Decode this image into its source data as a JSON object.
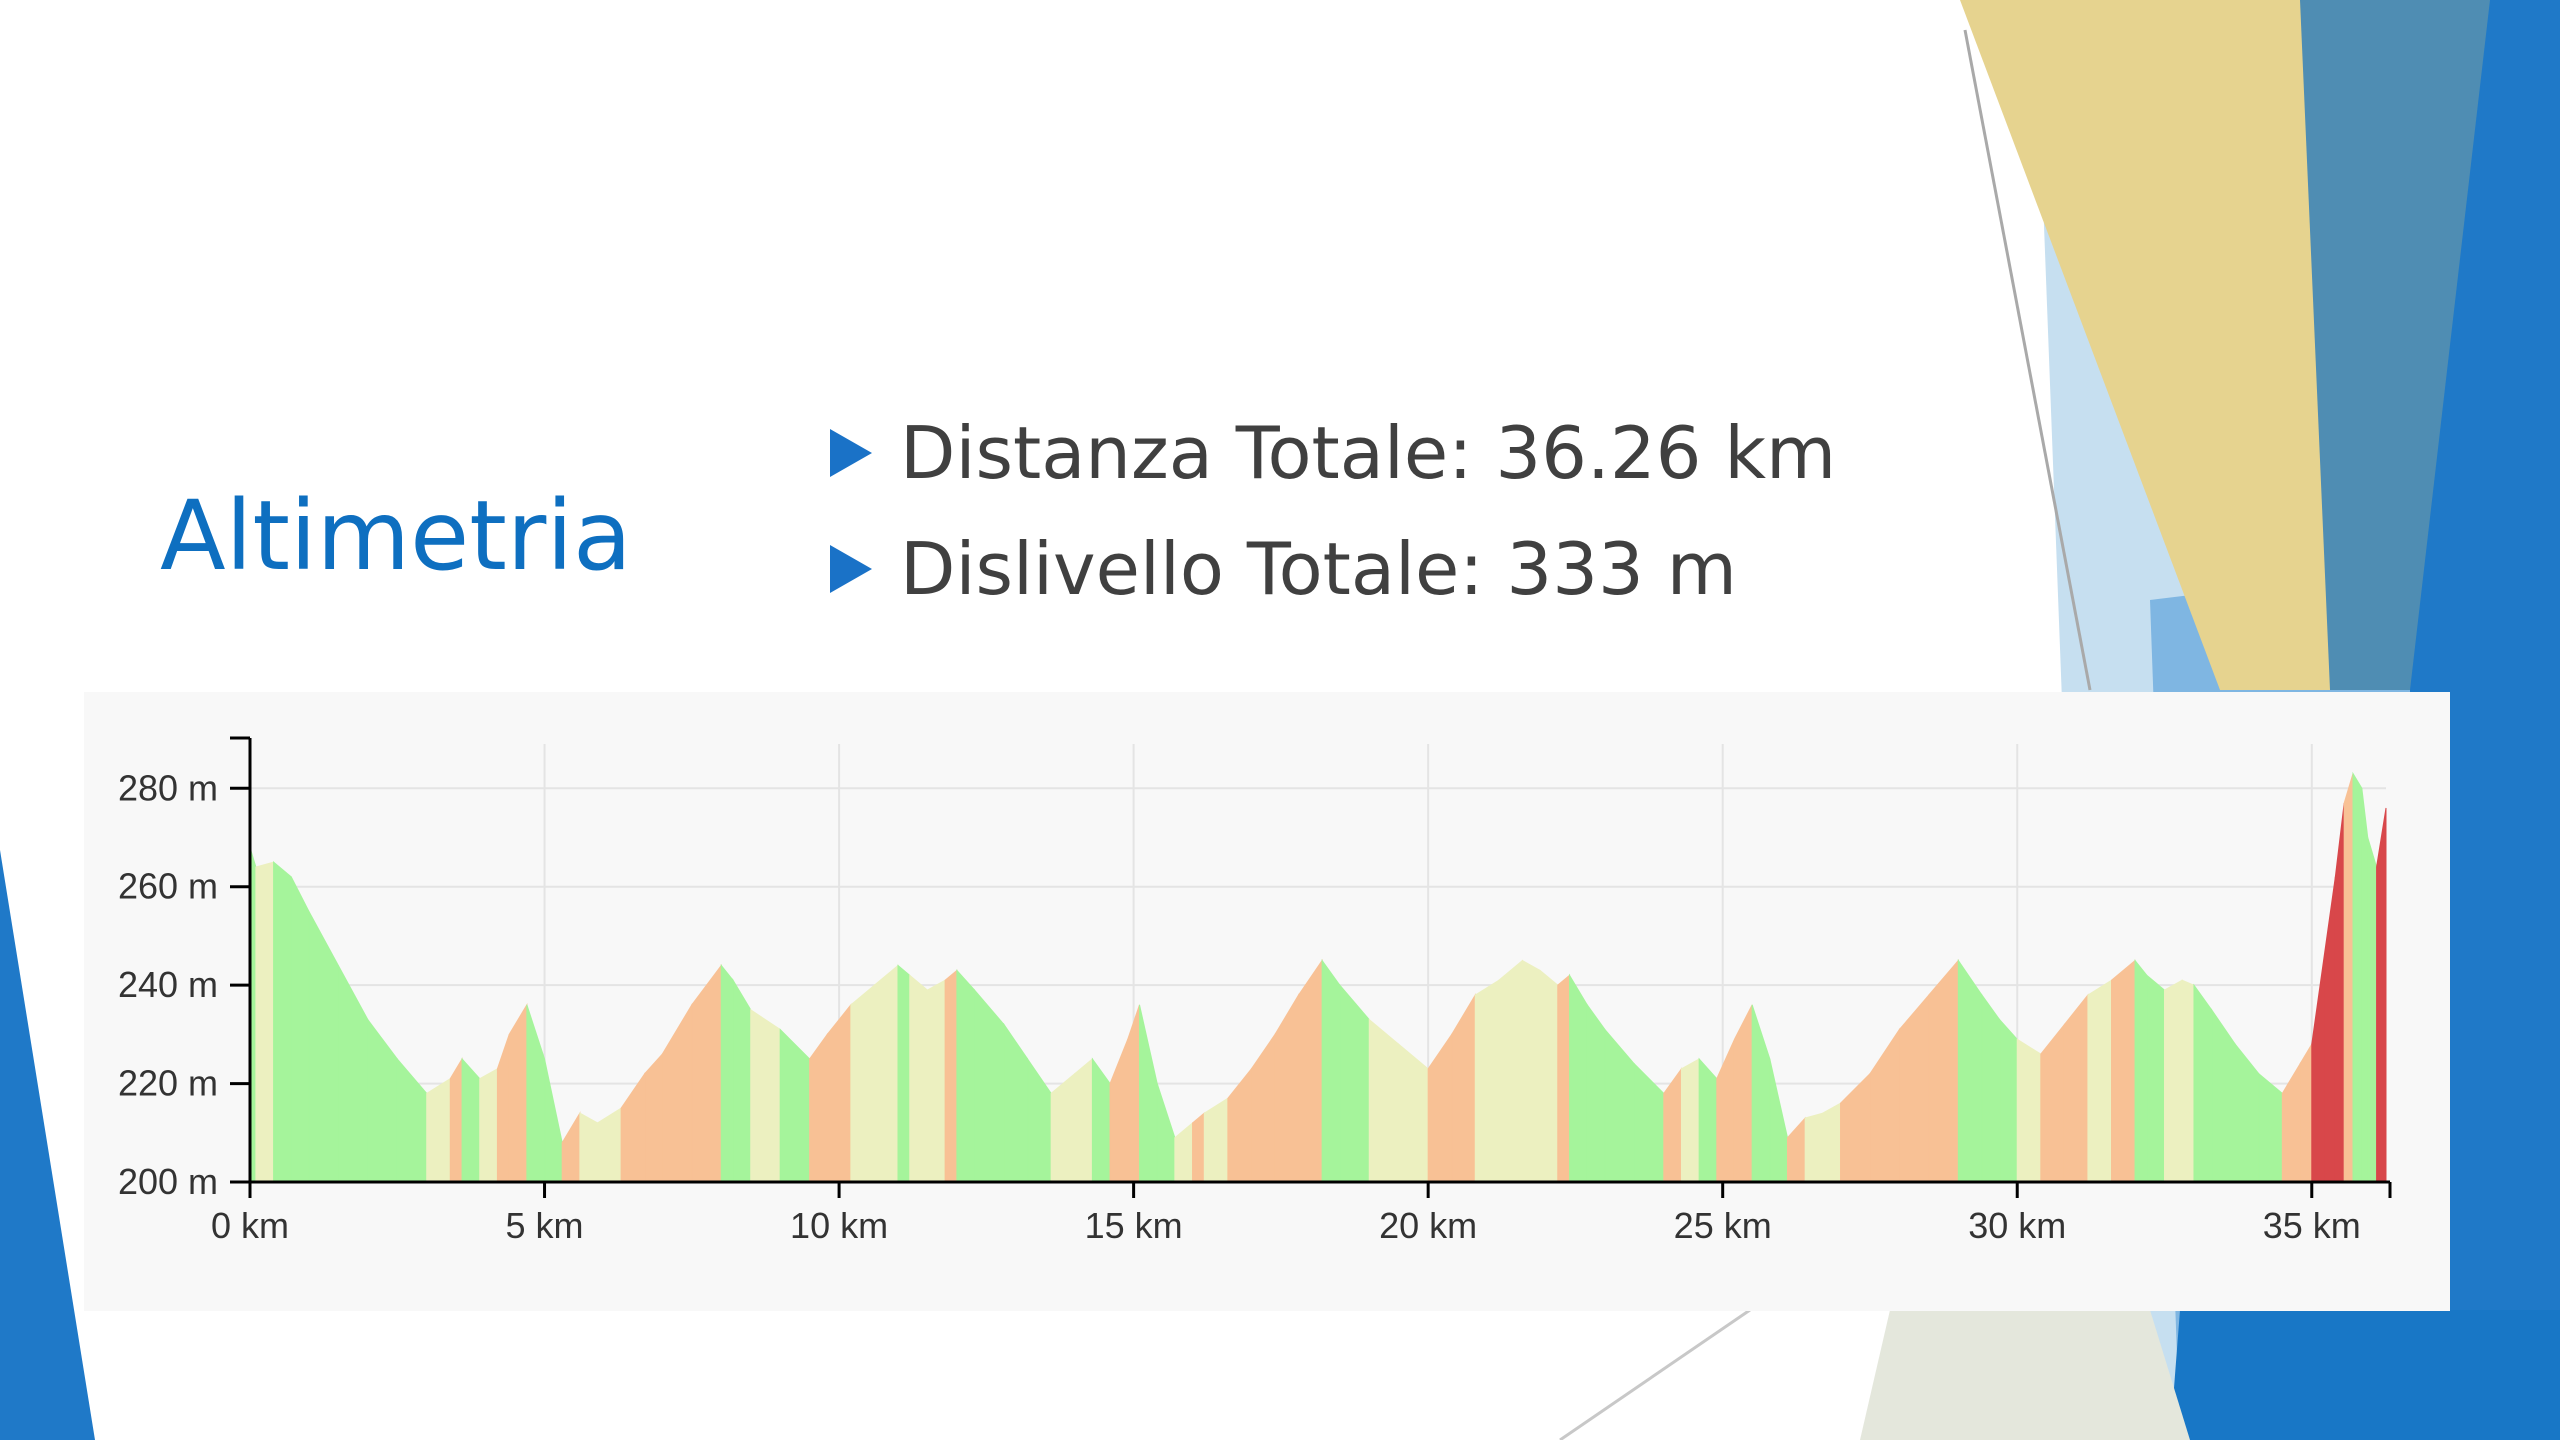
{
  "slide": {
    "title": "Altimetria",
    "bullets": [
      "Distanza Totale: 36.26 km",
      "Dislivello Totale: 333 m"
    ]
  },
  "colors": {
    "title": "#0e6fc0",
    "text": "#404040",
    "bullet_marker": "#1a72c7",
    "chart_background": "#f8f8f8",
    "grid": "#e4e4e4",
    "axis": "#000000",
    "slope_descent": "#a5f49b",
    "slope_flat": "#ecf0c0",
    "slope_gentle_climb": "#f8c195",
    "slope_steep_climb": "#d8474a"
  },
  "chart_data": {
    "type": "area",
    "title": "",
    "xlabel": "",
    "ylabel": "",
    "xlim": [
      0,
      36.26
    ],
    "ylim": [
      200,
      289
    ],
    "x_ticks": [
      0,
      5,
      10,
      15,
      20,
      25,
      30,
      35
    ],
    "x_tick_labels": [
      "0 km",
      "5 km",
      "10 km",
      "15 km",
      "20 km",
      "25 km",
      "30 km",
      "35 km"
    ],
    "y_ticks": [
      200,
      220,
      240,
      260,
      280
    ],
    "y_tick_labels": [
      "200 m",
      "220 m",
      "240 m",
      "260 m",
      "280 m"
    ],
    "grid": true,
    "legend": "none",
    "fill": "colored by slope",
    "series": [
      {
        "x": [
          0,
          0.1,
          0.4,
          0.7,
          1.0,
          1.5,
          2.0,
          2.5,
          3.0,
          3.4,
          3.6,
          3.9,
          4.2,
          4.4,
          4.7,
          5.0,
          5.3,
          5.6,
          5.9,
          6.3,
          6.7,
          7.0,
          7.5,
          8.0,
          8.2,
          8.5,
          9.0,
          9.5,
          9.8,
          10.2,
          10.6,
          11.0,
          11.2,
          11.5,
          11.8,
          12.0,
          12.3,
          12.8,
          13.2,
          13.6,
          14.0,
          14.3,
          14.6,
          14.9,
          15.1,
          15.4,
          15.7,
          16.0,
          16.2,
          16.6,
          17.0,
          17.4,
          17.8,
          18.2,
          18.5,
          19.0,
          19.5,
          20.0,
          20.4,
          20.8,
          21.2,
          21.6,
          21.9,
          22.2,
          22.4,
          22.7,
          23.0,
          23.5,
          24.0,
          24.3,
          24.6,
          24.9,
          25.2,
          25.5,
          25.8,
          26.1,
          26.4,
          26.7,
          27.0,
          27.5,
          28.0,
          28.5,
          29.0,
          29.4,
          29.7,
          30.0,
          30.4,
          30.8,
          31.2,
          31.6,
          32.0,
          32.2,
          32.5,
          32.8,
          33.0,
          33.3,
          33.7,
          34.1,
          34.5,
          34.8,
          35.0,
          35.2,
          35.4,
          35.55,
          35.7,
          35.85,
          35.95,
          36.1,
          36.26
        ],
        "y": [
          268,
          264,
          265,
          262,
          255,
          244,
          233,
          225,
          218,
          221,
          225,
          221,
          223,
          230,
          236,
          225,
          208,
          214,
          212,
          215,
          222,
          226,
          236,
          244,
          241,
          235,
          231,
          225,
          230,
          236,
          240,
          244,
          242,
          239,
          241,
          243,
          239,
          232,
          225,
          218,
          222,
          225,
          220,
          229,
          236,
          220,
          209,
          212,
          214,
          217,
          223,
          230,
          238,
          245,
          240,
          233,
          228,
          223,
          230,
          238,
          241,
          245,
          243,
          240,
          242,
          236,
          231,
          224,
          218,
          223,
          225,
          221,
          229,
          236,
          225,
          209,
          213,
          214,
          216,
          222,
          231,
          238,
          245,
          238,
          233,
          229,
          226,
          232,
          238,
          241,
          245,
          242,
          239,
          241,
          240,
          235,
          228,
          222,
          218,
          224,
          228,
          245,
          262,
          277,
          283,
          280,
          270,
          264,
          276
        ]
      }
    ]
  }
}
